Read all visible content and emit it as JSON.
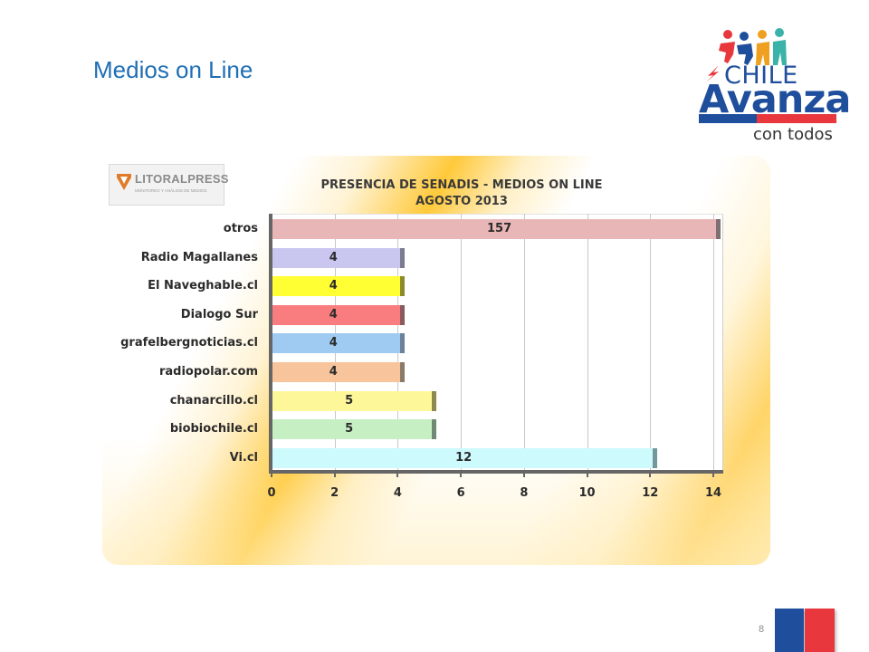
{
  "slide": {
    "title": "Medios on Line",
    "page_number": "8"
  },
  "logo": {
    "line1": "CHILE",
    "line2": "Avanza",
    "line3": "con todos",
    "colors": {
      "blue": "#1f4e9c",
      "red": "#e8383d"
    }
  },
  "source": {
    "name": "LITORALPRESS",
    "tagline": "MONITOREO Y ANÁLISIS DE MEDIOS"
  },
  "chart_data": {
    "type": "bar",
    "orientation": "horizontal",
    "title": "PRESENCIA DE SENADIS - MEDIOS ON LINE",
    "subtitle": "AGOSTO 2013",
    "categories": [
      "otros",
      "Radio Magallanes",
      "El Naveghable.cl",
      "Dialogo Sur",
      "grafelbergnoticias.cl",
      "radiopolar.com",
      "chanarcillo.cl",
      "biobiochile.cl",
      "Vi.cl"
    ],
    "values": [
      157,
      4,
      4,
      4,
      4,
      4,
      5,
      5,
      12
    ],
    "data_labels": [
      "157",
      "4",
      "4",
      "4",
      "4",
      "4",
      "5",
      "5",
      "12"
    ],
    "bar_colors": [
      "#e9b6b8",
      "#c9c6f0",
      "#ffff33",
      "#f97d7f",
      "#9fcbf2",
      "#f8c49c",
      "#fdf79a",
      "#c6efc4",
      "#ccfafd"
    ],
    "cap_colors": [
      "#7d6f72",
      "#7b7c90",
      "#8b8b2a",
      "#8a5a5d",
      "#6d8198",
      "#8b7a6a",
      "#8e8a4e",
      "#6f8a72",
      "#73979b"
    ],
    "xlim": [
      0,
      14
    ],
    "xticks": [
      "0",
      "2",
      "4",
      "6",
      "8",
      "10",
      "12",
      "14"
    ],
    "grid": true,
    "note": "The 'otros' bar (157) is clipped at the 14 axis limit."
  }
}
